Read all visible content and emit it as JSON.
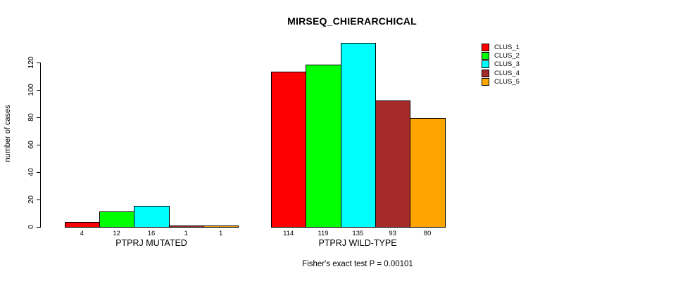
{
  "chart_data": {
    "type": "bar",
    "title": "MIRSEQ_CHIERARCHICAL",
    "subtitle": "Fisher's exact test P = 0.00101",
    "ylabel": "number of cases",
    "xlabel": "",
    "ylim": [
      0,
      135
    ],
    "yticks": [
      0,
      20,
      40,
      60,
      80,
      100,
      120
    ],
    "grid": false,
    "legend_position": "top-right",
    "bar_value_labels_shown": true,
    "categories": [
      "PTPRJ MUTATED",
      "PTPRJ WILD-TYPE"
    ],
    "series": [
      {
        "name": "CLUS_1",
        "color": "#ff0000",
        "values": [
          4,
          114
        ]
      },
      {
        "name": "CLUS_2",
        "color": "#00ff00",
        "values": [
          12,
          119
        ]
      },
      {
        "name": "CLUS_3",
        "color": "#00ffff",
        "values": [
          16,
          135
        ]
      },
      {
        "name": "CLUS_4",
        "color": "#a52a2a",
        "values": [
          1,
          93
        ]
      },
      {
        "name": "CLUS_5",
        "color": "#ffa500",
        "values": [
          1,
          80
        ]
      }
    ],
    "colors": {
      "axis": "#000000",
      "text": "#000000",
      "background": "#ffffff"
    }
  }
}
